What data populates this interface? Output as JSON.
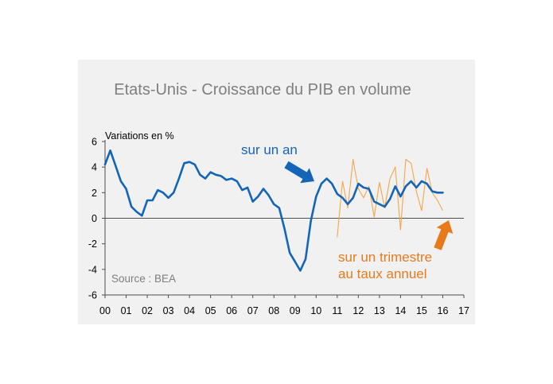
{
  "chart_data": {
    "type": "line",
    "title": "Etats-Unis - Croissance du PIB en volume",
    "ylabel": "Variations en %",
    "source": "Source : BEA",
    "ylim": [
      -6,
      6
    ],
    "yticks": [
      6,
      4,
      2,
      0,
      -2,
      -4,
      -6
    ],
    "xlim": [
      2000,
      2017
    ],
    "x_tick_labels": [
      "00",
      "01",
      "02",
      "03",
      "04",
      "05",
      "06",
      "07",
      "08",
      "09",
      "10",
      "11",
      "12",
      "13",
      "14",
      "15",
      "16",
      "17"
    ],
    "grid": false,
    "colors": {
      "annual": "#1465b8",
      "quarterly": "#f5a54a",
      "annotation_orange": "#e87a1c",
      "background": "#f1f1f1"
    },
    "series": [
      {
        "label": "sur un an",
        "points": [
          [
            2000.0,
            4.2
          ],
          [
            2000.25,
            5.3
          ],
          [
            2000.5,
            4.1
          ],
          [
            2000.75,
            2.9
          ],
          [
            2001.0,
            2.3
          ],
          [
            2001.25,
            0.9
          ],
          [
            2001.5,
            0.5
          ],
          [
            2001.75,
            0.2
          ],
          [
            2002.0,
            1.4
          ],
          [
            2002.25,
            1.4
          ],
          [
            2002.5,
            2.2
          ],
          [
            2002.75,
            2.0
          ],
          [
            2003.0,
            1.6
          ],
          [
            2003.25,
            2.0
          ],
          [
            2003.5,
            3.1
          ],
          [
            2003.75,
            4.3
          ],
          [
            2004.0,
            4.4
          ],
          [
            2004.25,
            4.2
          ],
          [
            2004.5,
            3.4
          ],
          [
            2004.75,
            3.1
          ],
          [
            2005.0,
            3.6
          ],
          [
            2005.25,
            3.4
          ],
          [
            2005.5,
            3.3
          ],
          [
            2005.75,
            3.0
          ],
          [
            2006.0,
            3.1
          ],
          [
            2006.25,
            2.9
          ],
          [
            2006.5,
            2.2
          ],
          [
            2006.75,
            2.4
          ],
          [
            2007.0,
            1.3
          ],
          [
            2007.25,
            1.7
          ],
          [
            2007.5,
            2.3
          ],
          [
            2007.75,
            1.8
          ],
          [
            2008.0,
            1.1
          ],
          [
            2008.25,
            0.8
          ],
          [
            2008.5,
            -0.8
          ],
          [
            2008.75,
            -2.7
          ],
          [
            2009.0,
            -3.4
          ],
          [
            2009.25,
            -4.1
          ],
          [
            2009.5,
            -3.2
          ],
          [
            2009.75,
            -0.2
          ],
          [
            2010.0,
            1.7
          ],
          [
            2010.25,
            2.7
          ],
          [
            2010.5,
            3.1
          ],
          [
            2010.75,
            2.7
          ],
          [
            2011.0,
            1.9
          ],
          [
            2011.25,
            1.6
          ],
          [
            2011.5,
            1.1
          ],
          [
            2011.75,
            1.6
          ],
          [
            2012.0,
            2.7
          ],
          [
            2012.25,
            2.4
          ],
          [
            2012.5,
            2.3
          ],
          [
            2012.75,
            1.3
          ],
          [
            2013.0,
            1.1
          ],
          [
            2013.25,
            0.9
          ],
          [
            2013.5,
            1.5
          ],
          [
            2013.75,
            2.5
          ],
          [
            2014.0,
            1.7
          ],
          [
            2014.25,
            2.5
          ],
          [
            2014.5,
            2.9
          ],
          [
            2014.75,
            2.4
          ],
          [
            2015.0,
            2.9
          ],
          [
            2015.25,
            2.7
          ],
          [
            2015.5,
            2.1
          ],
          [
            2015.75,
            2.0
          ],
          [
            2016.0,
            2.0
          ]
        ]
      },
      {
        "label": "sur un trimestre au taux annuel",
        "points": [
          [
            2011.0,
            -1.5
          ],
          [
            2011.25,
            2.9
          ],
          [
            2011.5,
            0.8
          ],
          [
            2011.75,
            4.6
          ],
          [
            2012.0,
            2.3
          ],
          [
            2012.25,
            1.6
          ],
          [
            2012.5,
            2.5
          ],
          [
            2012.75,
            0.1
          ],
          [
            2013.0,
            2.8
          ],
          [
            2013.25,
            0.8
          ],
          [
            2013.5,
            3.1
          ],
          [
            2013.75,
            4.0
          ],
          [
            2014.0,
            -0.9
          ],
          [
            2014.25,
            4.6
          ],
          [
            2014.5,
            4.3
          ],
          [
            2014.75,
            2.1
          ],
          [
            2015.0,
            0.6
          ],
          [
            2015.25,
            3.9
          ],
          [
            2015.5,
            2.0
          ],
          [
            2015.75,
            1.4
          ],
          [
            2016.0,
            0.6
          ]
        ]
      }
    ]
  }
}
